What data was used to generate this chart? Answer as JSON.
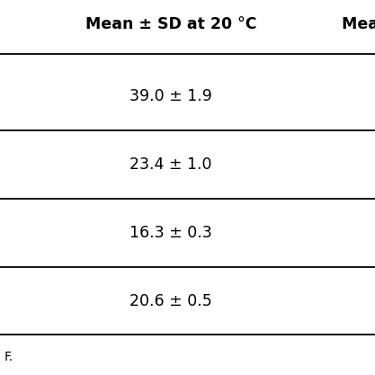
{
  "header": "Mean ± SD at 20 °C",
  "header2": "Mea ",
  "rows": [
    "39.0 ± 1.9",
    "23.4 ± 1.0",
    "16.3 ± 0.3",
    "20.6 ± 0.5"
  ],
  "footer_text": "F.",
  "background_color": "#ffffff",
  "text_color": "#000000",
  "line_color": "#000000",
  "header_fontsize": 12.5,
  "cell_fontsize": 12.5,
  "footer_fontsize": 10
}
